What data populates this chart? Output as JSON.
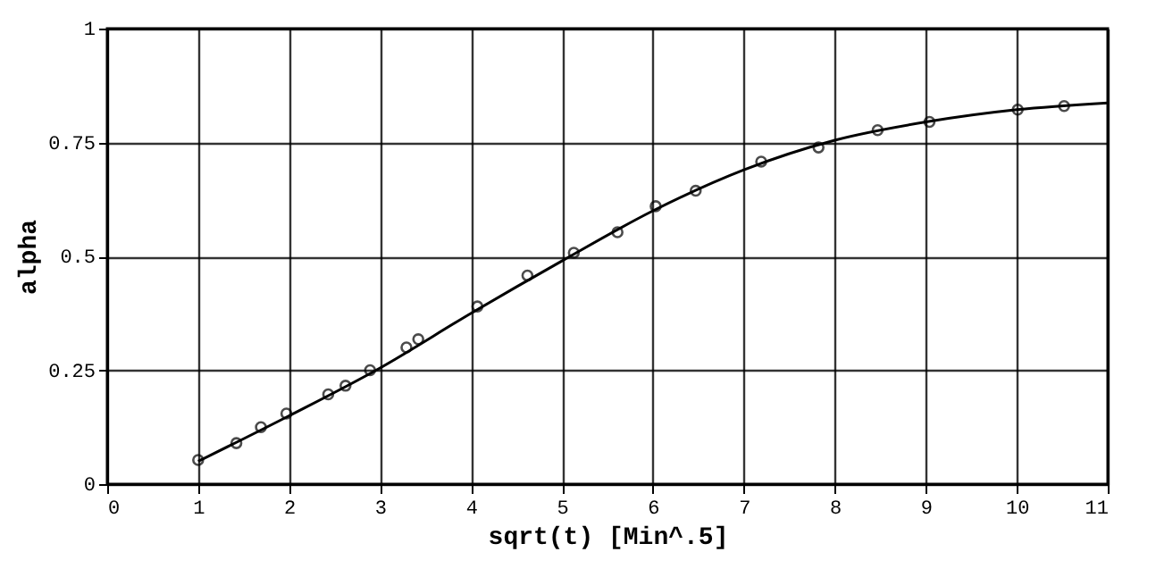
{
  "chart_data": {
    "type": "scatter",
    "xlabel": "sqrt(t) [Min^.5]",
    "ylabel": "alpha",
    "xlim": [
      0,
      11
    ],
    "ylim": [
      0,
      1
    ],
    "xticks": [
      0,
      1,
      2,
      3,
      4,
      5,
      6,
      7,
      8,
      9,
      10,
      11
    ],
    "yticks": [
      0,
      0.25,
      0.5,
      0.75,
      1
    ],
    "grid": true,
    "x": [
      1.0,
      1.42,
      1.69,
      1.97,
      2.43,
      2.62,
      2.89,
      3.29,
      3.42,
      4.07,
      4.62,
      5.13,
      5.61,
      6.03,
      6.47,
      7.19,
      7.82,
      8.47,
      9.04,
      10.01,
      10.52
    ],
    "series": [
      {
        "marker": "circle",
        "color": "#000000",
        "values": [
          0.053,
          0.09,
          0.125,
          0.155,
          0.197,
          0.216,
          0.25,
          0.3,
          0.318,
          0.39,
          0.458,
          0.508,
          0.553,
          0.61,
          0.644,
          0.708,
          0.739,
          0.777,
          0.795,
          0.822,
          0.83
        ]
      },
      {
        "type": "line",
        "color": "#000000",
        "line_style": "solid",
        "x": [
          1,
          2,
          3,
          4,
          5,
          6,
          7,
          8,
          9,
          10,
          11
        ],
        "values": [
          0.05,
          0.15,
          0.255,
          0.375,
          0.49,
          0.6,
          0.69,
          0.755,
          0.795,
          0.822,
          0.837
        ]
      }
    ]
  }
}
